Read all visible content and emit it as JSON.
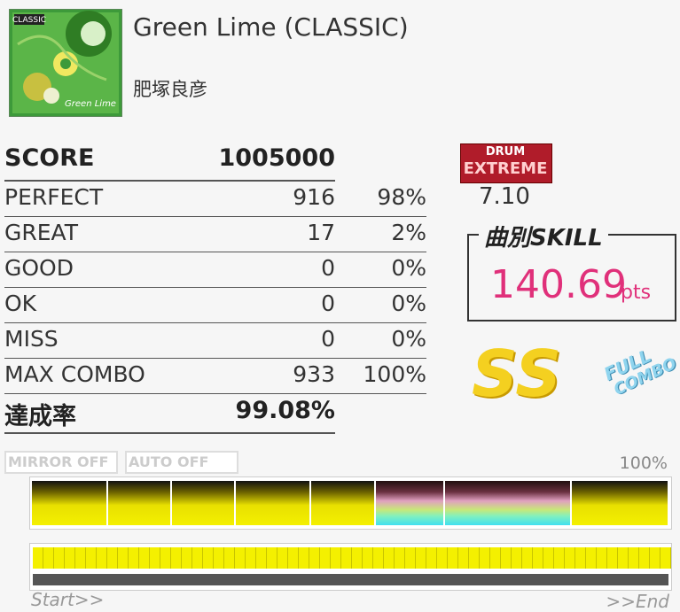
{
  "song": {
    "art_label": "CLASSIC",
    "art_title": "Green Lime",
    "title": "Green Lime (CLASSIC)",
    "artist": "肥塚良彦"
  },
  "result_table": {
    "rows": [
      [
        "PERFECT",
        "916",
        "98%"
      ],
      [
        "GREAT",
        "17",
        "2%"
      ],
      [
        "GOOD",
        "0",
        "0%"
      ],
      [
        "OK",
        "0",
        "0%"
      ],
      [
        "MISS",
        "0",
        "0%"
      ],
      [
        "MAX COMBO",
        "933",
        "100%"
      ]
    ],
    "score_label": "SCORE",
    "score": "1005000",
    "rate_label": "達成率",
    "rate": "99.08%"
  },
  "difficulty": {
    "badge_top": "DRUM",
    "badge_bottom": "EXTREME",
    "level": "7.10"
  },
  "skill": {
    "label": "曲別SKILL",
    "value": "140.69",
    "unit": "pts"
  },
  "rank": "SS",
  "full_combo": {
    "line1": "FULL",
    "line2": "COMBO"
  },
  "options": [
    "MIRROR OFF",
    "AUTO OFF"
  ],
  "progress": {
    "percent": "100%",
    "start": "Start>>",
    "end": ">>End"
  }
}
